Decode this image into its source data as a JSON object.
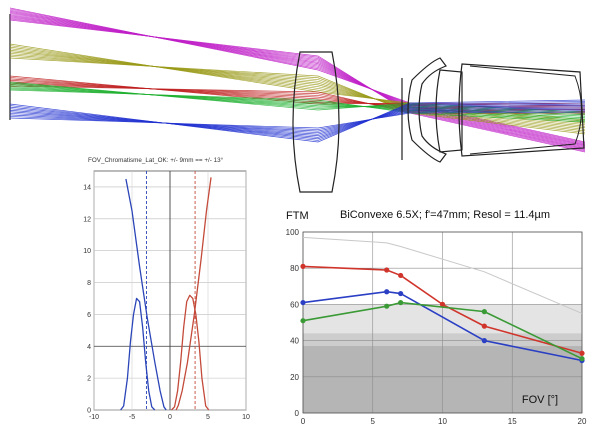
{
  "chart_data": [
    {
      "type": "line",
      "title": "FOV_Chromatisme_Lat_OK:  +/- 9mm ==  +/- 13°",
      "xlabel": "",
      "ylabel": "",
      "xlim": [
        -10,
        10
      ],
      "ylim": [
        0,
        15
      ],
      "x_ticks": [
        -10,
        -5,
        0,
        5,
        10
      ],
      "x_tick_labels": [
        "-10",
        "-5",
        "0",
        "5",
        "10"
      ],
      "y_ticks": [
        0,
        2,
        4,
        6,
        8,
        10,
        12,
        14
      ],
      "y_tick_labels": [
        "0",
        "2",
        "4",
        "6",
        "8",
        "10",
        "12",
        "14"
      ],
      "grid": true,
      "series": [
        {
          "name": "",
          "color": "#2b45b8",
          "points": [
            [
              -6.5,
              0
            ],
            [
              -6.1,
              0.25
            ],
            [
              -5.6,
              2
            ],
            [
              -5.2,
              4.3
            ],
            [
              -4.8,
              6
            ],
            [
              -4.4,
              7
            ],
            [
              -4.0,
              6.8
            ],
            [
              -3.6,
              5.2
            ],
            [
              -3.2,
              3
            ],
            [
              -2.8,
              1.2
            ],
            [
              -2.4,
              0.2
            ],
            [
              -2.0,
              0
            ]
          ]
        },
        {
          "name": "",
          "color": "#2b45b8",
          "points": [
            [
              -5.8,
              14.5
            ],
            [
              -5.0,
              12.5
            ],
            [
              -4.0,
              9.0
            ],
            [
              -3.0,
              5.8
            ],
            [
              -2.0,
              3.0
            ],
            [
              -1.3,
              1.2
            ],
            [
              -0.8,
              0.2
            ],
            [
              -0.5,
              0
            ]
          ]
        },
        {
          "name": "",
          "color": "#c44a3a",
          "points": [
            [
              0.2,
              0
            ],
            [
              0.6,
              0.2
            ],
            [
              1.0,
              1.2
            ],
            [
              1.4,
              3
            ],
            [
              1.8,
              5.2
            ],
            [
              2.2,
              6.8
            ],
            [
              2.6,
              7.2
            ],
            [
              3.0,
              7
            ],
            [
              3.4,
              6
            ],
            [
              3.8,
              4.3
            ],
            [
              4.2,
              2
            ],
            [
              4.7,
              0.25
            ],
            [
              5.1,
              0
            ]
          ]
        },
        {
          "name": "",
          "color": "#c44a3a",
          "points": [
            [
              0.8,
              0
            ],
            [
              1.1,
              0.3
            ],
            [
              1.6,
              1.2
            ],
            [
              2.3,
              3.0
            ],
            [
              3.2,
              6.0
            ],
            [
              4.1,
              9.5
            ],
            [
              4.8,
              12.5
            ],
            [
              5.4,
              14.6
            ]
          ]
        }
      ],
      "vlines": [
        {
          "x": -3.1,
          "color": "#2b45b8",
          "style": "dashed"
        },
        {
          "x": 3.3,
          "color": "#c44a3a",
          "style": "dashed"
        },
        {
          "x": 0,
          "color": "#444444",
          "style": "solid"
        }
      ],
      "hline": {
        "y": 4,
        "color": "#444444"
      }
    },
    {
      "type": "line",
      "title": "BiConvexe 6.5X;  f'=47mm;  Resol = 11.4µm",
      "ylabel": "FTM",
      "xlabel": "FOV [°]",
      "xlim": [
        0,
        20
      ],
      "ylim": [
        0,
        100
      ],
      "x_ticks": [
        0,
        5,
        10,
        15,
        20
      ],
      "x_tick_labels": [
        "0",
        "5",
        "10",
        "15",
        "20"
      ],
      "y_ticks": [
        0,
        20,
        40,
        60,
        80,
        100
      ],
      "y_tick_labels": [
        "0",
        "20",
        "40",
        "60",
        "80",
        "100"
      ],
      "grid": true,
      "bands": [
        {
          "from": 0,
          "to": 60,
          "color": "#e4e4e4"
        },
        {
          "from": 0,
          "to": 44,
          "color": "#cdcdcd"
        },
        {
          "from": 0,
          "to": 37,
          "color": "#b5b5b5"
        }
      ],
      "series": [
        {
          "name": "",
          "color": "#c8c8c8",
          "marker": false,
          "x": [
            0,
            6,
            7,
            13,
            20
          ],
          "y": [
            97,
            94,
            92,
            78,
            55
          ]
        },
        {
          "name": "",
          "color": "#d0352b",
          "marker": true,
          "x": [
            0,
            6,
            7,
            10,
            13,
            20
          ],
          "y": [
            81,
            79,
            76,
            60,
            48,
            33
          ]
        },
        {
          "name": "",
          "color": "#2a3fc4",
          "marker": true,
          "x": [
            0,
            6,
            7,
            13,
            20
          ],
          "y": [
            61,
            67,
            66,
            40,
            29
          ]
        },
        {
          "name": "",
          "color": "#3a9a35",
          "marker": true,
          "x": [
            0,
            6,
            7,
            13,
            20
          ],
          "y": [
            51,
            59,
            61,
            56,
            30
          ]
        }
      ]
    }
  ]
}
